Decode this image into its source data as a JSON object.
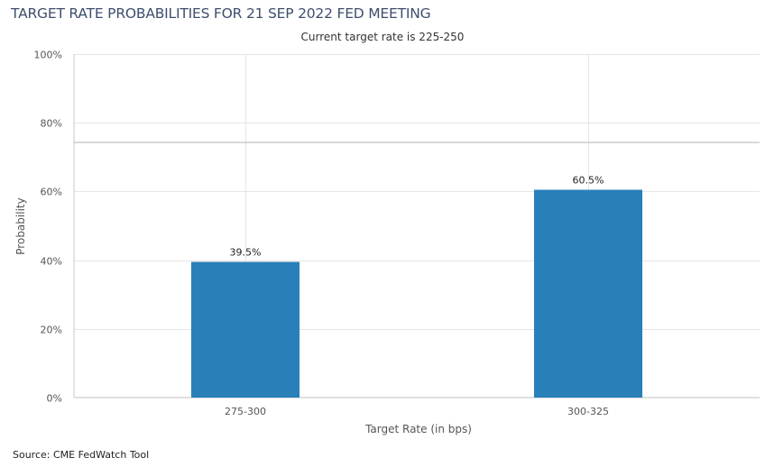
{
  "chart_data": {
    "type": "bar",
    "title": "TARGET RATE PROBABILITIES FOR 21 SEP 2022 FED MEETING",
    "subtitle": "Current target rate is 225-250",
    "xlabel": "Target Rate (in bps)",
    "ylabel": "Probability",
    "categories": [
      "275-300",
      "300-325"
    ],
    "values": [
      39.5,
      60.5
    ],
    "data_labels": [
      "39.5%",
      "60.5%"
    ],
    "ylim": [
      0,
      100
    ],
    "yticks": [
      0,
      20,
      40,
      60,
      80,
      100
    ],
    "ytick_labels": [
      "0%",
      "20%",
      "40%",
      "60%",
      "80%",
      "100%"
    ],
    "grid": true,
    "bar_color": "#2980b9",
    "legend": "none"
  },
  "footer": {
    "source": "Source: CME FedWatch Tool"
  }
}
